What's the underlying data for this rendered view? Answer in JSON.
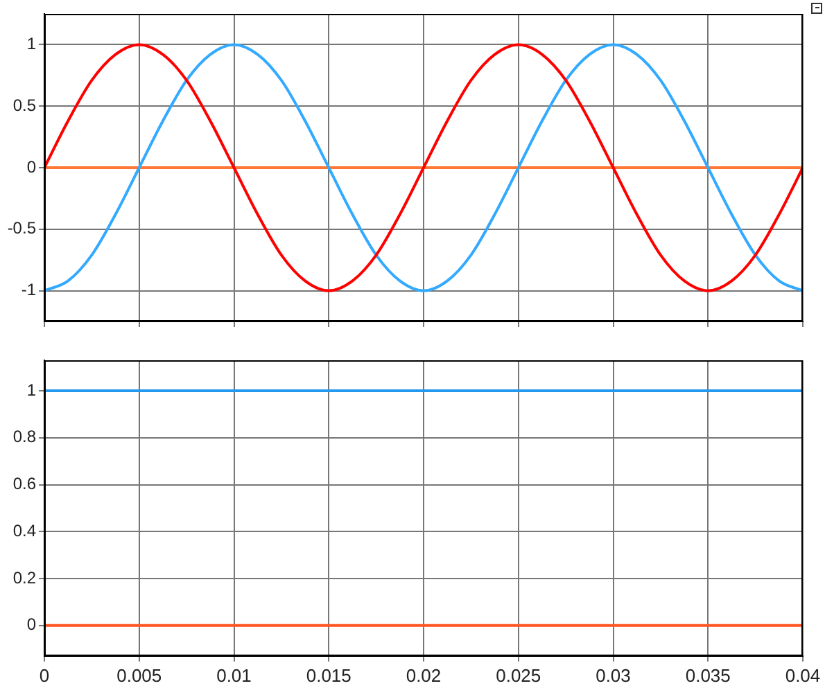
{
  "chart_data": [
    {
      "type": "line",
      "x": [
        0,
        0.00125,
        0.0025,
        0.00375,
        0.005,
        0.00625,
        0.0075,
        0.00875,
        0.01,
        0.01125,
        0.0125,
        0.01375,
        0.015,
        0.01625,
        0.0175,
        0.01875,
        0.02,
        0.02125,
        0.0225,
        0.02375,
        0.025,
        0.02625,
        0.0275,
        0.02875,
        0.03,
        0.03125,
        0.0325,
        0.03375,
        0.035,
        0.03625,
        0.0375,
        0.03875,
        0.04
      ],
      "series": [
        {
          "color": "#ff0000",
          "values": [
            0,
            0.38,
            0.71,
            0.92,
            1,
            0.92,
            0.71,
            0.38,
            0,
            -0.38,
            -0.71,
            -0.92,
            -1,
            -0.92,
            -0.71,
            -0.38,
            0,
            0.38,
            0.71,
            0.92,
            1,
            0.92,
            0.71,
            0.38,
            0,
            -0.38,
            -0.71,
            -0.92,
            -1,
            -0.92,
            -0.71,
            -0.38,
            0
          ]
        },
        {
          "color": "#33aaff",
          "values": [
            -1,
            -0.92,
            -0.71,
            -0.38,
            0,
            0.38,
            0.71,
            0.92,
            1,
            0.92,
            0.71,
            0.38,
            0,
            -0.38,
            -0.71,
            -0.92,
            -1,
            -0.92,
            -0.71,
            -0.38,
            0,
            0.38,
            0.71,
            0.92,
            1,
            0.92,
            0.71,
            0.38,
            0,
            -0.38,
            -0.71,
            -0.92,
            -1
          ]
        },
        {
          "color": "#ff7733",
          "values": [
            0,
            0,
            0,
            0,
            0,
            0,
            0,
            0,
            0,
            0,
            0,
            0,
            0,
            0,
            0,
            0,
            0,
            0,
            0,
            0,
            0,
            0,
            0,
            0,
            0,
            0,
            0,
            0,
            0,
            0,
            0,
            0,
            0
          ]
        }
      ],
      "xlim": [
        0,
        0.04
      ],
      "xticks": [
        0,
        0.005,
        0.01,
        0.015,
        0.02,
        0.025,
        0.03,
        0.035,
        0.04
      ],
      "ylim": [
        -1.25,
        1.25
      ],
      "yticks": [
        -1,
        -0.5,
        0,
        0.5,
        1
      ],
      "grid": true,
      "tick_labels": "y",
      "marker": "none",
      "line_style": "solid"
    },
    {
      "type": "line",
      "x": [
        0,
        0.04
      ],
      "series": [
        {
          "color": "#2299ee",
          "values": [
            1,
            1
          ]
        },
        {
          "color": "#ff5522",
          "values": [
            0,
            0
          ]
        }
      ],
      "xlim": [
        0,
        0.04
      ],
      "xticks": [
        0,
        0.005,
        0.01,
        0.015,
        0.02,
        0.025,
        0.03,
        0.035,
        0.04
      ],
      "ylim": [
        -0.13,
        1.13
      ],
      "yticks": [
        0,
        0.2,
        0.4,
        0.6,
        0.8,
        1
      ],
      "grid": true,
      "marker": "none",
      "line_style": "solid"
    }
  ]
}
